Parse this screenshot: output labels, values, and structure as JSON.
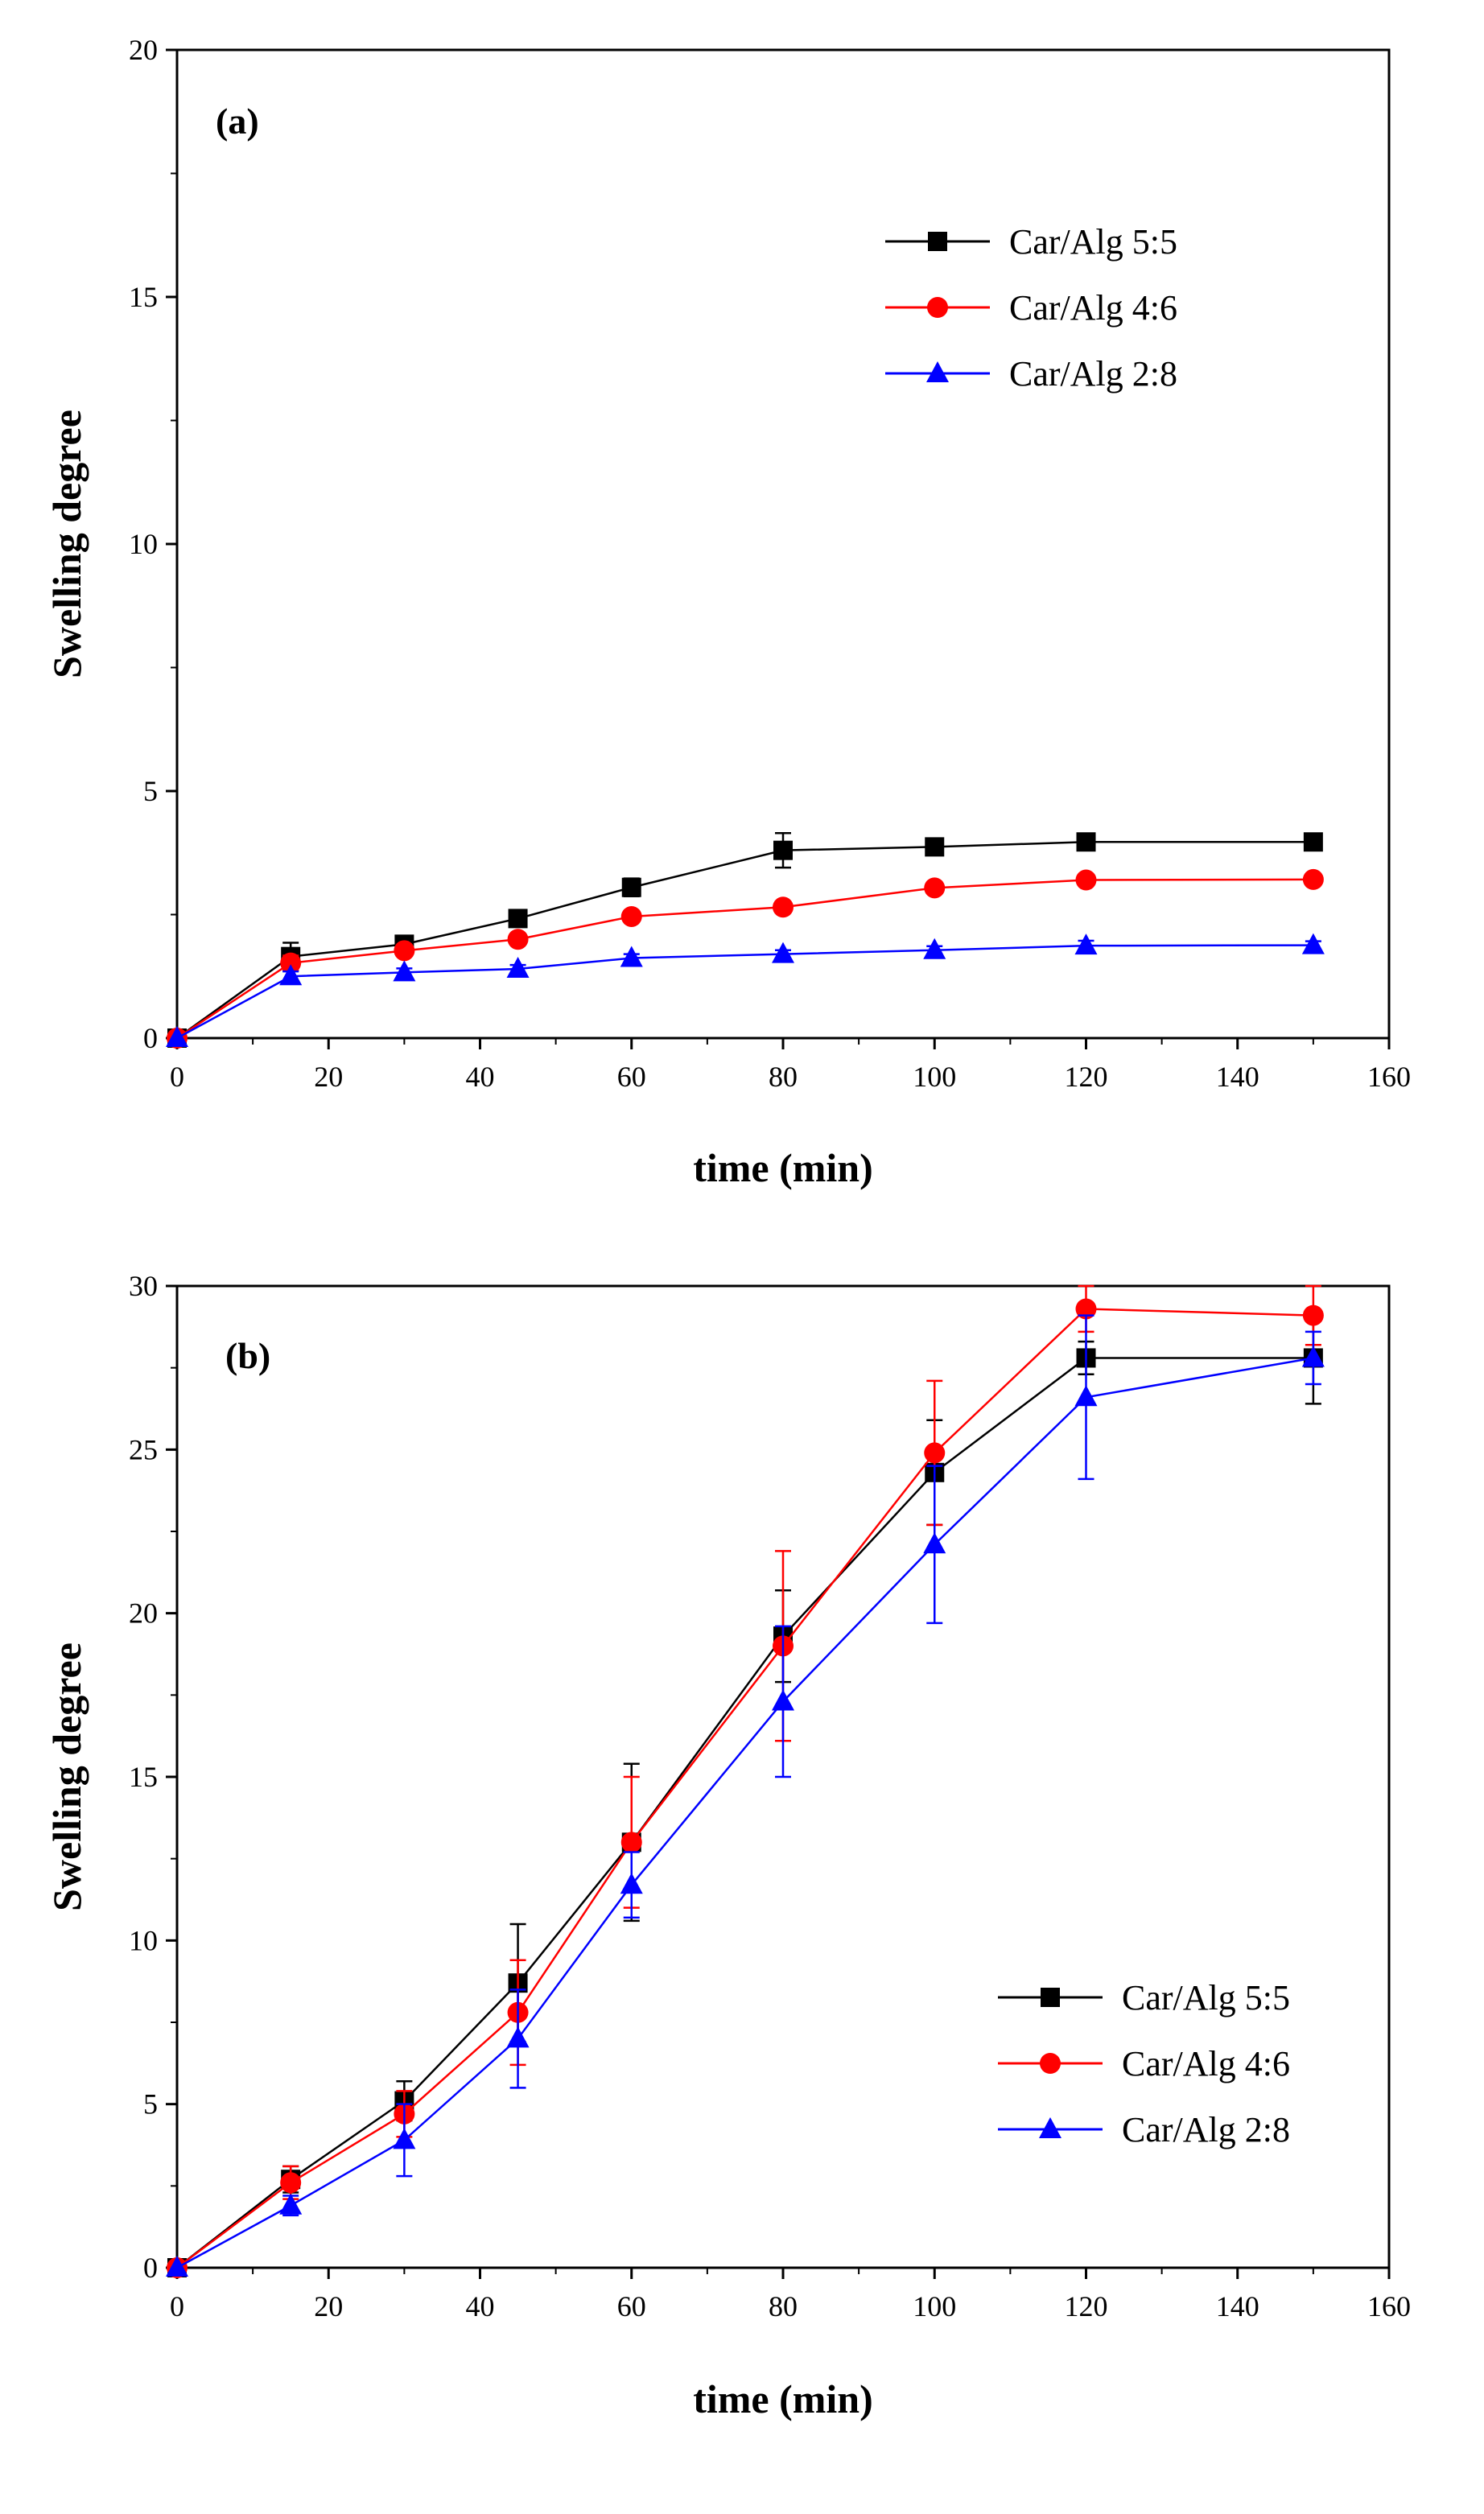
{
  "chart_data": [
    {
      "type": "line",
      "panel_label": "(a)",
      "xlabel": "time (min)",
      "ylabel": "Swelling degree",
      "xlim": [
        0,
        160
      ],
      "ylim": [
        0,
        20
      ],
      "xticks": [
        0,
        20,
        40,
        60,
        80,
        100,
        120,
        140,
        160
      ],
      "yticks": [
        0,
        5,
        10,
        15,
        20
      ],
      "legend_position": "top-right",
      "x": [
        0,
        15,
        30,
        45,
        60,
        80,
        100,
        120,
        150
      ],
      "series": [
        {
          "name": "Car/Alg 5:5",
          "color": "#000000",
          "marker": "square",
          "values": [
            0,
            1.65,
            1.9,
            2.42,
            3.05,
            3.8,
            3.87,
            3.97,
            3.97
          ],
          "errors": [
            0,
            0.28,
            0.12,
            0.12,
            0.18,
            0.35,
            0.12,
            0.1,
            0.12
          ]
        },
        {
          "name": "Car/Alg 4:6",
          "color": "#ff0000",
          "marker": "circle",
          "values": [
            0,
            1.52,
            1.77,
            2.0,
            2.46,
            2.65,
            3.04,
            3.2,
            3.21
          ],
          "errors": [
            0,
            0.15,
            0.1,
            0.08,
            0.1,
            0.1,
            0.1,
            0.08,
            0.08
          ]
        },
        {
          "name": "Car/Alg 2:8",
          "color": "#0000ff",
          "marker": "triangle",
          "values": [
            0,
            1.25,
            1.33,
            1.4,
            1.62,
            1.7,
            1.78,
            1.87,
            1.88
          ],
          "errors": [
            0,
            0.1,
            0.08,
            0.08,
            0.08,
            0.08,
            0.08,
            0.1,
            0.08
          ]
        }
      ]
    },
    {
      "type": "line",
      "panel_label": "(b)",
      "xlabel": "time (min)",
      "ylabel": "Swelling degree",
      "xlim": [
        0,
        160
      ],
      "ylim": [
        0,
        30
      ],
      "xticks": [
        0,
        20,
        40,
        60,
        80,
        100,
        120,
        140,
        160
      ],
      "yticks": [
        0,
        5,
        10,
        15,
        20,
        25,
        30
      ],
      "legend_position": "bottom-right",
      "x": [
        0,
        15,
        30,
        45,
        60,
        80,
        100,
        120,
        150
      ],
      "series": [
        {
          "name": "Car/Alg 5:5",
          "color": "#000000",
          "marker": "square",
          "values": [
            0,
            2.7,
            5.1,
            8.7,
            13.0,
            19.3,
            24.3,
            27.8,
            27.8
          ],
          "errors": [
            0,
            0.4,
            0.6,
            1.8,
            2.4,
            1.4,
            1.6,
            0.5,
            1.4
          ]
        },
        {
          "name": "Car/Alg 4:6",
          "color": "#ff0000",
          "marker": "circle",
          "values": [
            0,
            2.6,
            4.7,
            7.8,
            13.0,
            19.0,
            24.9,
            29.3,
            29.1
          ],
          "errors": [
            0,
            0.5,
            0.7,
            1.6,
            2.0,
            2.9,
            2.2,
            0.7,
            0.9
          ]
        },
        {
          "name": "Car/Alg 2:8",
          "color": "#0000ff",
          "marker": "triangle",
          "values": [
            0,
            1.9,
            3.9,
            7.0,
            11.7,
            17.3,
            22.1,
            26.6,
            27.8
          ],
          "errors": [
            0,
            0.3,
            1.1,
            1.5,
            1.0,
            2.3,
            2.4,
            2.5,
            0.8
          ]
        }
      ]
    }
  ]
}
